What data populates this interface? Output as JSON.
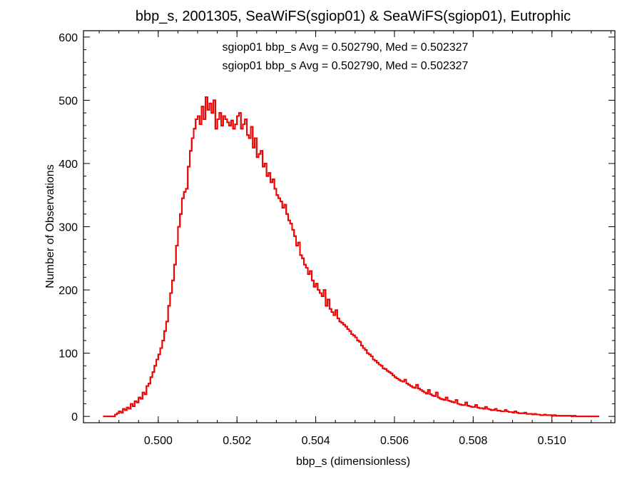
{
  "chart_data": {
    "type": "histogram",
    "title": "bbp_s, 2001305, SeaWiFS(sgiop01) & SeaWiFS(sgiop01), Eutrophic",
    "xlabel": "bbp_s (dimensionless)",
    "ylabel": "Number of Observations",
    "xlim": [
      0.4981,
      0.5116
    ],
    "ylim": [
      -10,
      610
    ],
    "xticks": [
      0.5,
      0.502,
      0.504,
      0.506,
      0.508,
      0.51
    ],
    "xtick_labels": [
      "0.500",
      "0.502",
      "0.504",
      "0.506",
      "0.508",
      "0.510"
    ],
    "yticks": [
      0,
      100,
      200,
      300,
      400,
      500,
      600
    ],
    "ytick_labels": [
      "0",
      "100",
      "200",
      "300",
      "400",
      "500",
      "600"
    ],
    "annotations": [
      {
        "text": "sgiop01 bbp_s Avg = 0.502790, Med = 0.502327",
        "color": "#000000"
      },
      {
        "text": "sgiop01 bbp_s Avg = 0.502790, Med = 0.502327",
        "color": "#ff0000"
      }
    ],
    "series": [
      {
        "color": "#000000"
      },
      {
        "color": "#ff0000"
      }
    ],
    "bin_width": 5e-05,
    "x": [
      0.4986,
      0.49865,
      0.4987,
      0.49875,
      0.4988,
      0.49885,
      0.4989,
      0.49895,
      0.499,
      0.49905,
      0.4991,
      0.49915,
      0.4992,
      0.49925,
      0.4993,
      0.49935,
      0.4994,
      0.49945,
      0.4995,
      0.49955,
      0.4996,
      0.49965,
      0.4997,
      0.49975,
      0.4998,
      0.49985,
      0.4999,
      0.49995,
      0.5,
      0.50005,
      0.5001,
      0.50015,
      0.5002,
      0.50025,
      0.5003,
      0.50035,
      0.5004,
      0.50045,
      0.5005,
      0.50055,
      0.5006,
      0.50065,
      0.5007,
      0.50075,
      0.5008,
      0.50085,
      0.5009,
      0.50095,
      0.501,
      0.50105,
      0.5011,
      0.50115,
      0.5012,
      0.50125,
      0.5013,
      0.50135,
      0.5014,
      0.50145,
      0.5015,
      0.50155,
      0.5016,
      0.50165,
      0.5017,
      0.50175,
      0.5018,
      0.50185,
      0.5019,
      0.50195,
      0.502,
      0.50205,
      0.5021,
      0.50215,
      0.5022,
      0.50225,
      0.5023,
      0.50235,
      0.5024,
      0.50245,
      0.5025,
      0.50255,
      0.5026,
      0.50265,
      0.5027,
      0.50275,
      0.5028,
      0.50285,
      0.5029,
      0.50295,
      0.503,
      0.50305,
      0.5031,
      0.50315,
      0.5032,
      0.50325,
      0.5033,
      0.50335,
      0.5034,
      0.50345,
      0.5035,
      0.50355,
      0.5036,
      0.50365,
      0.5037,
      0.50375,
      0.5038,
      0.50385,
      0.5039,
      0.50395,
      0.504,
      0.50405,
      0.5041,
      0.50415,
      0.5042,
      0.50425,
      0.5043,
      0.50435,
      0.5044,
      0.50445,
      0.5045,
      0.50455,
      0.5046,
      0.50465,
      0.5047,
      0.50475,
      0.5048,
      0.50485,
      0.5049,
      0.50495,
      0.505,
      0.50505,
      0.5051,
      0.50515,
      0.5052,
      0.50525,
      0.5053,
      0.50535,
      0.5054,
      0.50545,
      0.5055,
      0.50555,
      0.5056,
      0.50565,
      0.5057,
      0.50575,
      0.5058,
      0.50585,
      0.5059,
      0.50595,
      0.506,
      0.50605,
      0.5061,
      0.50615,
      0.5062,
      0.50625,
      0.5063,
      0.50635,
      0.5064,
      0.50645,
      0.5065,
      0.50655,
      0.5066,
      0.50665,
      0.5067,
      0.50675,
      0.5068,
      0.50685,
      0.5069,
      0.50695,
      0.507,
      0.50705,
      0.5071,
      0.50715,
      0.5072,
      0.50725,
      0.5073,
      0.50735,
      0.5074,
      0.50745,
      0.5075,
      0.50755,
      0.5076,
      0.50765,
      0.5077,
      0.50775,
      0.5078,
      0.50785,
      0.5079,
      0.50795,
      0.508,
      0.50805,
      0.5081,
      0.50815,
      0.5082,
      0.50825,
      0.5083,
      0.50835,
      0.5084,
      0.50845,
      0.5085,
      0.50855,
      0.5086,
      0.50865,
      0.5087,
      0.50875,
      0.5088,
      0.50885,
      0.5089,
      0.50895,
      0.509,
      0.50905,
      0.5091,
      0.50915,
      0.5092,
      0.50925,
      0.5093,
      0.50935,
      0.5094,
      0.50945,
      0.5095,
      0.50955,
      0.5096,
      0.50965,
      0.5097,
      0.50975,
      0.5098,
      0.50985,
      0.5099,
      0.50995,
      0.51,
      0.51005,
      0.5101,
      0.51015,
      0.5102,
      0.51025,
      0.5103,
      0.51035,
      0.5104,
      0.51045,
      0.5105,
      0.51055,
      0.5106,
      0.51065,
      0.5107,
      0.51075,
      0.5108,
      0.51085,
      0.5109,
      0.51095,
      0.511,
      0.51105,
      0.5111,
      0.51115
    ],
    "values": [
      0,
      0,
      0,
      0,
      0,
      0,
      3,
      5,
      8,
      6,
      12,
      10,
      14,
      12,
      20,
      16,
      24,
      22,
      30,
      28,
      38,
      35,
      48,
      52,
      62,
      70,
      80,
      90,
      98,
      108,
      120,
      135,
      150,
      175,
      195,
      215,
      240,
      270,
      300,
      320,
      345,
      355,
      360,
      395,
      420,
      440,
      455,
      470,
      475,
      462,
      490,
      470,
      505,
      485,
      495,
      480,
      500,
      455,
      470,
      480,
      460,
      475,
      470,
      465,
      460,
      468,
      455,
      462,
      475,
      480,
      455,
      462,
      470,
      445,
      440,
      458,
      425,
      440,
      410,
      415,
      420,
      395,
      400,
      380,
      385,
      370,
      375,
      360,
      350,
      345,
      340,
      330,
      335,
      320,
      310,
      305,
      295,
      285,
      270,
      275,
      255,
      250,
      240,
      235,
      225,
      230,
      215,
      205,
      210,
      200,
      195,
      190,
      200,
      175,
      185,
      170,
      165,
      160,
      168,
      155,
      150,
      148,
      145,
      142,
      138,
      135,
      130,
      128,
      125,
      120,
      118,
      112,
      108,
      105,
      100,
      98,
      95,
      90,
      88,
      85,
      82,
      80,
      76,
      75,
      72,
      70,
      68,
      65,
      62,
      60,
      58,
      56,
      55,
      58,
      52,
      50,
      48,
      46,
      45,
      50,
      44,
      42,
      40,
      38,
      36,
      42,
      35,
      33,
      32,
      38,
      30,
      28,
      27,
      26,
      30,
      25,
      24,
      23,
      22,
      26,
      20,
      19,
      18,
      18,
      22,
      17,
      16,
      15,
      15,
      18,
      14,
      13,
      13,
      12,
      15,
      12,
      11,
      10,
      10,
      12,
      9,
      9,
      8,
      8,
      10,
      8,
      7,
      7,
      6,
      8,
      6,
      5,
      5,
      5,
      6,
      4,
      4,
      4,
      3,
      4,
      3,
      3,
      2,
      2,
      3,
      2,
      2,
      2,
      1,
      2,
      1,
      1,
      1,
      1,
      1,
      1,
      1,
      1,
      0,
      1,
      0,
      0,
      0,
      0,
      0,
      0,
      0,
      0,
      0,
      0,
      0,
      0
    ]
  }
}
